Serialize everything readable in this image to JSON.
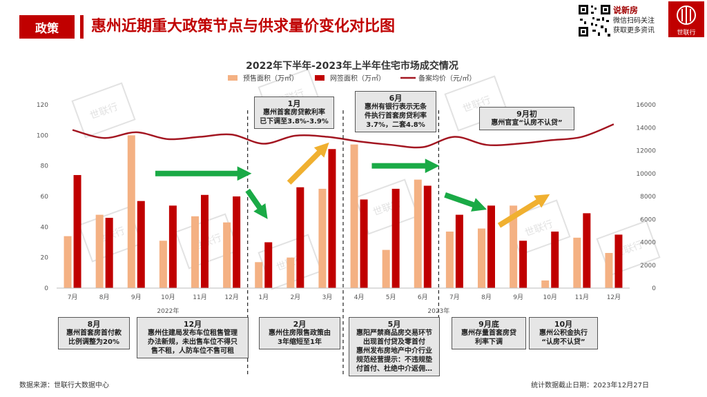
{
  "header": {
    "tag": "政策",
    "title": "惠州近期重大政策节点与供求量价变化对比图",
    "brand_name": "说新房",
    "brand_line1": "微信扫码关注",
    "brand_line2": "获取更多资讯",
    "logo_text": "世联行"
  },
  "footer": {
    "source": "数据来源：世联行大数据中心",
    "cutoff": "统计数据截止日期：2023年12月27日"
  },
  "chart_data": {
    "type": "bar",
    "title": "2022年下半年-2023年上半年住宅市场成交情况",
    "categories": [
      "7月",
      "8月",
      "9月",
      "10月",
      "11月",
      "12月",
      "1月",
      "2月",
      "3月",
      "4月",
      "5月",
      "6月",
      "7月",
      "8月",
      "9月",
      "10月",
      "11月",
      "12月"
    ],
    "year_labels": [
      "2022年",
      "2023年"
    ],
    "series": [
      {
        "name": "预售面积（万㎡）",
        "type": "bar",
        "axis": "left",
        "color": "#f4b183",
        "values": [
          34,
          48,
          100,
          31,
          47,
          43,
          17,
          20,
          65,
          94,
          25,
          71,
          37,
          39,
          54,
          5,
          33,
          23
        ]
      },
      {
        "name": "网签面积（万㎡）",
        "type": "bar",
        "axis": "left",
        "color": "#c00000",
        "values": [
          74,
          46,
          57,
          54,
          61,
          60,
          30,
          66,
          91,
          58,
          65,
          67,
          48,
          54,
          31,
          37,
          49,
          35
        ]
      },
      {
        "name": "备案均价（元/㎡）",
        "type": "line",
        "axis": "right",
        "color": "#a31621",
        "values": [
          13800,
          13100,
          13600,
          13000,
          13200,
          13400,
          12600,
          13300,
          13200,
          12800,
          12500,
          12300,
          13200,
          12500,
          12600,
          12900,
          13200,
          14300
        ]
      }
    ],
    "ylim_left": [
      0,
      120
    ],
    "yticks_left": [
      0,
      20,
      40,
      60,
      80,
      100,
      120
    ],
    "ylim_right": [
      0,
      16000
    ],
    "yticks_right": [
      0,
      2000,
      4000,
      6000,
      8000,
      10000,
      12000,
      14000,
      16000
    ],
    "dividers_after": [
      5,
      8,
      11
    ],
    "arrows": [
      {
        "from": 2.6,
        "to": 5.4,
        "y0": 75,
        "y1": 75,
        "color": "#1aaa46"
      },
      {
        "from": 5.5,
        "to": 6.0,
        "y0": 64,
        "y1": 49,
        "color": "#1aaa46"
      },
      {
        "from": 6.8,
        "to": 7.9,
        "y0": 69,
        "y1": 92,
        "color": "#f0b030"
      },
      {
        "from": 9.4,
        "to": 11.3,
        "y0": 80,
        "y1": 80,
        "color": "#1aaa46"
      },
      {
        "from": 11.7,
        "to": 12.8,
        "y0": 61,
        "y1": 53,
        "color": "#1aaa46"
      },
      {
        "from": 13.4,
        "to": 14.8,
        "y0": 41,
        "y1": 59,
        "color": "#f0b030"
      }
    ],
    "legend_position": "top"
  },
  "annotations": {
    "top": [
      {
        "title": "1月",
        "body": [
          "惠州首套房贷款利率",
          "已下调至3.8%-3.9%"
        ]
      },
      {
        "title": "6月",
        "body": [
          "惠州有银行表示无条",
          "件执行首套房贷利率",
          "3.7%，二套4.8%"
        ]
      },
      {
        "title": "9月初",
        "body": [
          "惠州官宣“认房不认贷”"
        ]
      }
    ],
    "bottom": [
      {
        "title": "8月",
        "body": [
          "惠州首套房首付款",
          "比例调整为20%"
        ]
      },
      {
        "title": "12月",
        "body": [
          "惠州住建局发布车位租售管理",
          "办法新规，未出售车位不得只",
          "售不租，人防车位不售可租"
        ]
      },
      {
        "title": "2月",
        "body": [
          "惠州住房限售政策由",
          "3年缩短至1年"
        ]
      },
      {
        "title": "5月",
        "body": [
          "惠阳严禁商品房交易环节",
          "出现首付贷及零首付",
          "惠州发布房地产中介行业",
          "规范经营提示：不违规垫",
          "付首付、杜绝中介返佣…"
        ]
      },
      {
        "title": "9月底",
        "body": [
          "惠州存量首套房贷",
          "利率下调"
        ]
      },
      {
        "title": "10月",
        "body": [
          "惠州公积金执行",
          "“认房不认贷”"
        ]
      }
    ]
  }
}
